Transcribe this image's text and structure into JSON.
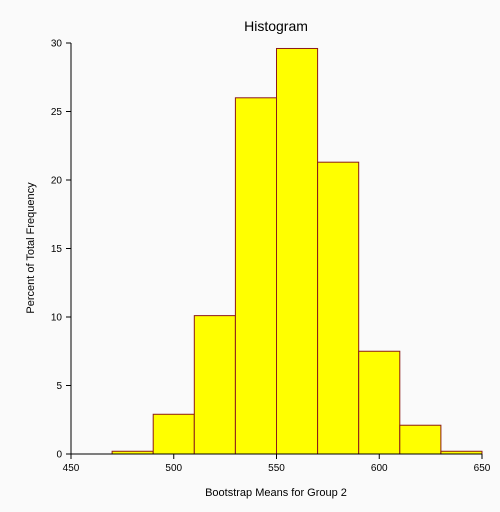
{
  "chart_data": {
    "type": "bar",
    "title": "Histogram",
    "xlabel": "Bootstrap Means for Group 2",
    "ylabel": "Percent of Total Frequency",
    "xlim": [
      450,
      650
    ],
    "ylim": [
      0,
      30
    ],
    "x_ticks": [
      450,
      500,
      550,
      600,
      650
    ],
    "y_ticks": [
      0,
      5,
      10,
      15,
      20,
      25,
      30
    ],
    "bin_edges": [
      470,
      490,
      510,
      530,
      550,
      570,
      590,
      610,
      630,
      650
    ],
    "values": [
      0.2,
      2.9,
      10.1,
      26.0,
      29.6,
      21.3,
      7.5,
      2.1,
      0.2
    ],
    "grid": false,
    "bar_fill": "#ffff00",
    "bar_stroke": "#8b1a1a",
    "background": "#fafafa"
  }
}
